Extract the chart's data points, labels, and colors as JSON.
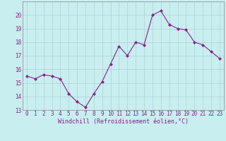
{
  "x": [
    0,
    1,
    2,
    3,
    4,
    5,
    6,
    7,
    8,
    9,
    10,
    11,
    12,
    13,
    14,
    15,
    16,
    17,
    18,
    19,
    20,
    21,
    22,
    23
  ],
  "y": [
    15.5,
    15.3,
    15.6,
    15.5,
    15.3,
    14.2,
    13.6,
    13.2,
    14.2,
    15.1,
    16.4,
    17.7,
    17.0,
    18.0,
    17.8,
    20.0,
    20.3,
    19.3,
    19.0,
    18.9,
    18.0,
    17.8,
    17.3,
    16.8
  ],
  "line_color": "#882288",
  "marker": "D",
  "marker_size": 2,
  "bg_color": "#c8eef0",
  "grid_color": "#b0d0d4",
  "xlabel": "Windchill (Refroidissement éolien,°C)",
  "ylim": [
    13,
    21
  ],
  "xlim": [
    -0.5,
    23.5
  ],
  "yticks": [
    13,
    14,
    15,
    16,
    17,
    18,
    19,
    20
  ],
  "xticks": [
    0,
    1,
    2,
    3,
    4,
    5,
    6,
    7,
    8,
    9,
    10,
    11,
    12,
    13,
    14,
    15,
    16,
    17,
    18,
    19,
    20,
    21,
    22,
    23
  ],
  "tick_color": "#882288",
  "label_color": "#882288",
  "spine_color": "#888888",
  "tick_fontsize": 5.5,
  "xlabel_fontsize": 6.0
}
